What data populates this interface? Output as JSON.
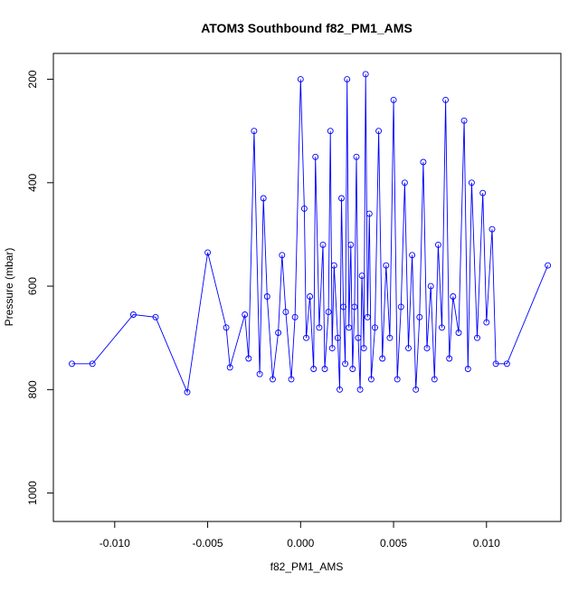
{
  "chart_data": {
    "type": "scatter",
    "title": "ATOM3 Southbound f82_PM1_AMS",
    "xlabel": "f82_PM1_AMS",
    "ylabel": "Pressure (mbar)",
    "xlim": [
      -0.0133,
      0.014
    ],
    "ylim": [
      1055,
      150
    ],
    "y_reversed": true,
    "x_ticks": [
      -0.01,
      -0.005,
      0.0,
      0.005,
      0.01
    ],
    "x_tick_labels": [
      "-0.010",
      "-0.005",
      "0.000",
      "0.005",
      "0.010"
    ],
    "y_ticks": [
      200,
      400,
      600,
      800,
      1000
    ],
    "y_tick_labels": [
      "200",
      "400",
      "600",
      "800",
      "1000"
    ],
    "grid": false,
    "marker": "open-circle",
    "connected_lines": true,
    "series_color": "#0000ff",
    "series": [
      {
        "points": [
          [
            -0.0123,
            750
          ],
          [
            -0.0112,
            750
          ],
          [
            -0.009,
            655
          ],
          [
            -0.0078,
            660
          ],
          [
            -0.0061,
            805
          ],
          [
            -0.005,
            535
          ],
          [
            -0.004,
            680
          ],
          [
            -0.0038,
            757
          ],
          [
            -0.003,
            655
          ],
          [
            -0.0028,
            740
          ],
          [
            -0.0025,
            300
          ],
          [
            -0.0022,
            770
          ],
          [
            -0.002,
            430
          ],
          [
            -0.0018,
            620
          ],
          [
            -0.0015,
            780
          ],
          [
            -0.0012,
            690
          ],
          [
            -0.001,
            540
          ],
          [
            -0.0008,
            650
          ],
          [
            -0.0005,
            780
          ],
          [
            -0.0003,
            660
          ],
          [
            0.0,
            200
          ],
          [
            0.0002,
            450
          ],
          [
            0.0003,
            700
          ],
          [
            0.0005,
            620
          ],
          [
            0.0007,
            760
          ],
          [
            0.0008,
            350
          ],
          [
            0.001,
            680
          ],
          [
            0.0012,
            520
          ],
          [
            0.0013,
            760
          ],
          [
            0.0015,
            650
          ],
          [
            0.0016,
            300
          ],
          [
            0.0017,
            720
          ],
          [
            0.0018,
            560
          ],
          [
            0.002,
            700
          ],
          [
            0.0021,
            800
          ],
          [
            0.0022,
            430
          ],
          [
            0.0023,
            640
          ],
          [
            0.0024,
            750
          ],
          [
            0.0025,
            200
          ],
          [
            0.0026,
            680
          ],
          [
            0.0027,
            520
          ],
          [
            0.0028,
            760
          ],
          [
            0.0029,
            640
          ],
          [
            0.003,
            350
          ],
          [
            0.0031,
            700
          ],
          [
            0.0032,
            800
          ],
          [
            0.0033,
            580
          ],
          [
            0.0034,
            720
          ],
          [
            0.0035,
            190
          ],
          [
            0.0036,
            660
          ],
          [
            0.0037,
            460
          ],
          [
            0.0038,
            780
          ],
          [
            0.004,
            680
          ],
          [
            0.0042,
            300
          ],
          [
            0.0044,
            740
          ],
          [
            0.0046,
            560
          ],
          [
            0.0048,
            700
          ],
          [
            0.005,
            240
          ],
          [
            0.0052,
            780
          ],
          [
            0.0054,
            640
          ],
          [
            0.0056,
            400
          ],
          [
            0.0058,
            720
          ],
          [
            0.006,
            540
          ],
          [
            0.0062,
            800
          ],
          [
            0.0064,
            660
          ],
          [
            0.0066,
            360
          ],
          [
            0.0068,
            720
          ],
          [
            0.007,
            600
          ],
          [
            0.0072,
            780
          ],
          [
            0.0074,
            520
          ],
          [
            0.0076,
            680
          ],
          [
            0.0078,
            240
          ],
          [
            0.008,
            740
          ],
          [
            0.0082,
            620
          ],
          [
            0.0085,
            690
          ],
          [
            0.0088,
            280
          ],
          [
            0.009,
            760
          ],
          [
            0.0092,
            400
          ],
          [
            0.0095,
            700
          ],
          [
            0.0098,
            420
          ],
          [
            0.01,
            670
          ],
          [
            0.0103,
            490
          ],
          [
            0.0105,
            750
          ],
          [
            0.0111,
            750
          ],
          [
            0.0133,
            560
          ]
        ]
      }
    ]
  }
}
